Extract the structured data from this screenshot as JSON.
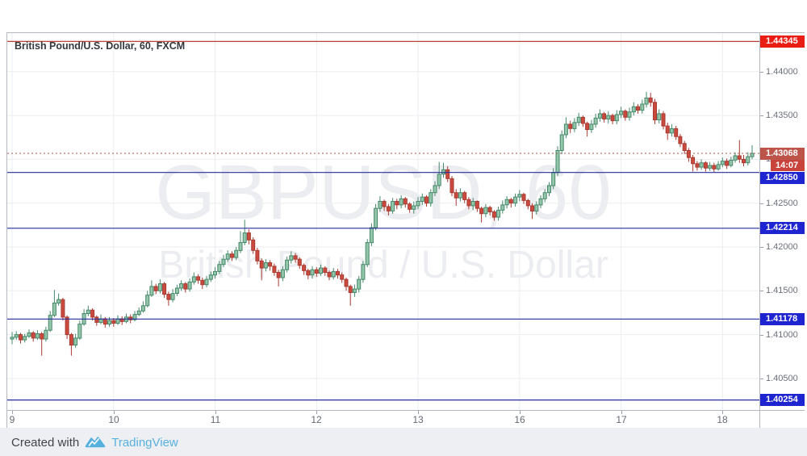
{
  "header": {
    "title": "British Pound/U.S. Dollar, 60, FXCM"
  },
  "watermark": {
    "line1": "GBPUSD, 60",
    "line2": "British Pound / U.S. Dollar"
  },
  "footer": {
    "created_with": "Created with",
    "brand": "TradingView"
  },
  "colors": {
    "up_fill": "#94c6ab",
    "up_border": "#46886a",
    "down_fill": "#cb4a3f",
    "down_border": "#a93a30",
    "grid": "#ebedf0",
    "axis_text": "#6b707b",
    "border": "#b4b7bf",
    "blue_line": "#272c9c",
    "blue_label_bg": "#1e24cf",
    "red_line": "#b02a22",
    "red_label_bg": "#ea1d15",
    "last_line": "#a8564b",
    "last_label_bg": "#bc544a",
    "countdown_bg": "#c8433b",
    "brand_blue": "#56b1df"
  },
  "price_axis": {
    "tick_labels": [
      "1.44000",
      "1.43500",
      "1.43000",
      "1.42500",
      "1.42000",
      "1.41500",
      "1.41000",
      "1.40500"
    ]
  },
  "levels": {
    "red": {
      "price": 1.44345,
      "label": "1.44345"
    },
    "blue": [
      {
        "price": 1.4285,
        "label": "1.42850"
      },
      {
        "price": 1.42214,
        "label": "1.42214"
      },
      {
        "price": 1.41178,
        "label": "1.41178"
      },
      {
        "price": 1.40254,
        "label": "1.40254"
      }
    ],
    "last_price": {
      "price": 1.43068,
      "label": "1.43068",
      "countdown": "14:07"
    }
  },
  "chart_data": {
    "type": "candlestick",
    "symbol": "GBPUSD",
    "interval": "60",
    "provider": "FXCM",
    "title": "British Pound/U.S. Dollar, 60, FXCM",
    "ylim": [
      1.4014,
      1.4444
    ],
    "y_ticks": [
      1.44,
      1.435,
      1.43,
      1.425,
      1.42,
      1.415,
      1.41,
      1.405
    ],
    "days": [
      {
        "label": "9",
        "start_index": 0
      },
      {
        "label": "10",
        "start_index": 24
      },
      {
        "label": "11",
        "start_index": 48
      },
      {
        "label": "12",
        "start_index": 72
      },
      {
        "label": "13",
        "start_index": 96
      },
      {
        "label": "16",
        "start_index": 120
      },
      {
        "label": "17",
        "start_index": 144
      },
      {
        "label": "18",
        "start_index": 168
      }
    ],
    "first_open": 1.4095,
    "candles_format": "[close, high, low] ; open = previous close",
    "candles": [
      [
        1.4097,
        1.4103,
        1.4089
      ],
      [
        1.41,
        1.4104,
        1.4094
      ],
      [
        1.4094,
        1.4102,
        1.409
      ],
      [
        1.4098,
        1.4101,
        1.4091
      ],
      [
        1.4102,
        1.4106,
        1.4096
      ],
      [
        1.4096,
        1.4104,
        1.4092
      ],
      [
        1.4101,
        1.4105,
        1.4094
      ],
      [
        1.4095,
        1.4103,
        1.4076
      ],
      [
        1.4105,
        1.4109,
        1.4092
      ],
      [
        1.4122,
        1.4127,
        1.4103
      ],
      [
        1.4136,
        1.4151,
        1.412
      ],
      [
        1.414,
        1.4147,
        1.4133
      ],
      [
        1.412,
        1.4142,
        1.4116
      ],
      [
        1.41,
        1.4122,
        1.4095
      ],
      [
        1.4088,
        1.4102,
        1.4076
      ],
      [
        1.4096,
        1.4101,
        1.4085
      ],
      [
        1.4112,
        1.4116,
        1.4094
      ],
      [
        1.4124,
        1.4129,
        1.411
      ],
      [
        1.4128,
        1.4133,
        1.4121
      ],
      [
        1.412,
        1.413,
        1.4116
      ],
      [
        1.4114,
        1.4122,
        1.411
      ],
      [
        1.4118,
        1.4123,
        1.4112
      ],
      [
        1.4112,
        1.412,
        1.4108
      ],
      [
        1.4116,
        1.412,
        1.4109
      ],
      [
        1.4113,
        1.4119,
        1.4109
      ],
      [
        1.4118,
        1.4122,
        1.4111
      ],
      [
        1.4115,
        1.4121,
        1.4111
      ],
      [
        1.412,
        1.4124,
        1.4113
      ],
      [
        1.4117,
        1.4123,
        1.4113
      ],
      [
        1.4123,
        1.4127,
        1.4115
      ],
      [
        1.4127,
        1.4131,
        1.4121
      ],
      [
        1.4133,
        1.4138,
        1.4125
      ],
      [
        1.4145,
        1.415,
        1.4131
      ],
      [
        1.4155,
        1.4162,
        1.4143
      ],
      [
        1.415,
        1.4158,
        1.4146
      ],
      [
        1.4158,
        1.4163,
        1.4147
      ],
      [
        1.4146,
        1.416,
        1.4142
      ],
      [
        1.414,
        1.4149,
        1.4133
      ],
      [
        1.4147,
        1.4152,
        1.4137
      ],
      [
        1.4153,
        1.4157,
        1.4144
      ],
      [
        1.4158,
        1.4162,
        1.415
      ],
      [
        1.4152,
        1.416,
        1.4148
      ],
      [
        1.416,
        1.4164,
        1.4149
      ],
      [
        1.4166,
        1.4171,
        1.4157
      ],
      [
        1.4162,
        1.4169,
        1.4158
      ],
      [
        1.4157,
        1.4165,
        1.4152
      ],
      [
        1.4163,
        1.4167,
        1.4154
      ],
      [
        1.4168,
        1.4172,
        1.416
      ],
      [
        1.4172,
        1.4177,
        1.4164
      ],
      [
        1.418,
        1.4184,
        1.4169
      ],
      [
        1.4186,
        1.4191,
        1.4177
      ],
      [
        1.4192,
        1.4196,
        1.4183
      ],
      [
        1.4188,
        1.4195,
        1.4184
      ],
      [
        1.4196,
        1.42,
        1.4185
      ],
      [
        1.4205,
        1.4218,
        1.4193
      ],
      [
        1.4216,
        1.4231,
        1.4202
      ],
      [
        1.4208,
        1.422,
        1.4203
      ],
      [
        1.4196,
        1.4211,
        1.4192
      ],
      [
        1.4184,
        1.4199,
        1.418
      ],
      [
        1.4176,
        1.4187,
        1.4162
      ],
      [
        1.4182,
        1.4186,
        1.4172
      ],
      [
        1.4178,
        1.4185,
        1.4173
      ],
      [
        1.4171,
        1.4181,
        1.4167
      ],
      [
        1.4165,
        1.4174,
        1.4155
      ],
      [
        1.4174,
        1.4178,
        1.4161
      ],
      [
        1.4185,
        1.4189,
        1.4171
      ],
      [
        1.419,
        1.4195,
        1.4181
      ],
      [
        1.4186,
        1.4193,
        1.4182
      ],
      [
        1.4179,
        1.4188,
        1.4175
      ],
      [
        1.4173,
        1.4181,
        1.4168
      ],
      [
        1.4168,
        1.4175,
        1.4163
      ],
      [
        1.4174,
        1.4178,
        1.4164
      ],
      [
        1.417,
        1.4177,
        1.4166
      ],
      [
        1.4176,
        1.418,
        1.4167
      ],
      [
        1.4171,
        1.4178,
        1.4167
      ],
      [
        1.4166,
        1.4173,
        1.4162
      ],
      [
        1.4172,
        1.4176,
        1.4163
      ],
      [
        1.4168,
        1.4175,
        1.4164
      ],
      [
        1.4163,
        1.4171,
        1.4159
      ],
      [
        1.4155,
        1.4165,
        1.415
      ],
      [
        1.4148,
        1.4157,
        1.4133
      ],
      [
        1.4152,
        1.4157,
        1.4143
      ],
      [
        1.4163,
        1.4167,
        1.4148
      ],
      [
        1.418,
        1.4184,
        1.4159
      ],
      [
        1.4205,
        1.4209,
        1.4177
      ],
      [
        1.4222,
        1.4227,
        1.4201
      ],
      [
        1.4244,
        1.4249,
        1.4219
      ],
      [
        1.4252,
        1.4258,
        1.424
      ],
      [
        1.4246,
        1.4254,
        1.4241
      ],
      [
        1.4241,
        1.4249,
        1.4236
      ],
      [
        1.4252,
        1.4256,
        1.4238
      ],
      [
        1.4248,
        1.4255,
        1.4243
      ],
      [
        1.4255,
        1.4259,
        1.4244
      ],
      [
        1.4249,
        1.4257,
        1.4245
      ],
      [
        1.4243,
        1.4251,
        1.4239
      ],
      [
        1.4247,
        1.4252,
        1.4238
      ],
      [
        1.4252,
        1.4257,
        1.4243
      ],
      [
        1.4257,
        1.4261,
        1.4248
      ],
      [
        1.425,
        1.4259,
        1.4246
      ],
      [
        1.4262,
        1.4266,
        1.4246
      ],
      [
        1.427,
        1.4275,
        1.4258
      ],
      [
        1.4283,
        1.4297,
        1.4266
      ],
      [
        1.4288,
        1.4296,
        1.4279
      ],
      [
        1.4278,
        1.4292,
        1.4274
      ],
      [
        1.4262,
        1.4281,
        1.4258
      ],
      [
        1.4256,
        1.4266,
        1.4247
      ],
      [
        1.4262,
        1.4267,
        1.4252
      ],
      [
        1.4254,
        1.4264,
        1.425
      ],
      [
        1.4247,
        1.4257,
        1.4243
      ],
      [
        1.4252,
        1.4256,
        1.4242
      ],
      [
        1.4244,
        1.4253,
        1.424
      ],
      [
        1.4238,
        1.4246,
        1.4228
      ],
      [
        1.4245,
        1.4249,
        1.4234
      ],
      [
        1.424,
        1.4247,
        1.4236
      ],
      [
        1.4234,
        1.4242,
        1.423
      ],
      [
        1.4242,
        1.4246,
        1.423
      ],
      [
        1.4248,
        1.4253,
        1.4238
      ],
      [
        1.4254,
        1.4258,
        1.4244
      ],
      [
        1.425,
        1.4256,
        1.4245
      ],
      [
        1.4257,
        1.4261,
        1.4246
      ],
      [
        1.426,
        1.4265,
        1.4252
      ],
      [
        1.4253,
        1.4262,
        1.4249
      ],
      [
        1.4247,
        1.4255,
        1.4243
      ],
      [
        1.4241,
        1.425,
        1.4232
      ],
      [
        1.4248,
        1.4252,
        1.4237
      ],
      [
        1.4255,
        1.4259,
        1.4244
      ],
      [
        1.4262,
        1.4266,
        1.4251
      ],
      [
        1.427,
        1.4274,
        1.4258
      ],
      [
        1.4285,
        1.429,
        1.4266
      ],
      [
        1.431,
        1.4315,
        1.4281
      ],
      [
        1.4328,
        1.4333,
        1.4306
      ],
      [
        1.434,
        1.4348,
        1.4324
      ],
      [
        1.4335,
        1.4344,
        1.433
      ],
      [
        1.4342,
        1.4347,
        1.4331
      ],
      [
        1.4348,
        1.4353,
        1.4338
      ],
      [
        1.4341,
        1.435,
        1.4337
      ],
      [
        1.4334,
        1.4343,
        1.4326
      ],
      [
        1.434,
        1.4345,
        1.433
      ],
      [
        1.4347,
        1.4352,
        1.4336
      ],
      [
        1.4352,
        1.4357,
        1.4343
      ],
      [
        1.4346,
        1.4354,
        1.4342
      ],
      [
        1.435,
        1.4355,
        1.4341
      ],
      [
        1.4344,
        1.4352,
        1.434
      ],
      [
        1.4351,
        1.4356,
        1.434
      ],
      [
        1.4355,
        1.436,
        1.4347
      ],
      [
        1.4348,
        1.4357,
        1.4344
      ],
      [
        1.4354,
        1.4359,
        1.4344
      ],
      [
        1.436,
        1.4365,
        1.435
      ],
      [
        1.4356,
        1.4363,
        1.4352
      ],
      [
        1.4363,
        1.4368,
        1.4352
      ],
      [
        1.437,
        1.4377,
        1.4359
      ],
      [
        1.4365,
        1.4376,
        1.436
      ],
      [
        1.4345,
        1.4369,
        1.434
      ],
      [
        1.4352,
        1.4357,
        1.4341
      ],
      [
        1.4338,
        1.4355,
        1.4334
      ],
      [
        1.433,
        1.4342,
        1.4322
      ],
      [
        1.4335,
        1.434,
        1.4326
      ],
      [
        1.4326,
        1.4338,
        1.4322
      ],
      [
        1.4318,
        1.4329,
        1.4314
      ],
      [
        1.431,
        1.4321,
        1.4306
      ],
      [
        1.4302,
        1.4313,
        1.4297
      ],
      [
        1.4295,
        1.4305,
        1.4286
      ],
      [
        1.4291,
        1.4298,
        1.4287
      ],
      [
        1.4296,
        1.43,
        1.4288
      ],
      [
        1.429,
        1.4298,
        1.4286
      ],
      [
        1.4293,
        1.4297,
        1.4287
      ],
      [
        1.4289,
        1.4296,
        1.4285
      ],
      [
        1.4294,
        1.4298,
        1.4287
      ],
      [
        1.4298,
        1.4302,
        1.4291
      ],
      [
        1.4293,
        1.4301,
        1.4289
      ],
      [
        1.4299,
        1.4303,
        1.4291
      ],
      [
        1.4304,
        1.4308,
        1.4296
      ],
      [
        1.43,
        1.4322,
        1.4296
      ],
      [
        1.4296,
        1.4305,
        1.4292
      ],
      [
        1.4303,
        1.4308,
        1.4293
      ],
      [
        1.43068,
        1.4316,
        1.43
      ]
    ]
  }
}
